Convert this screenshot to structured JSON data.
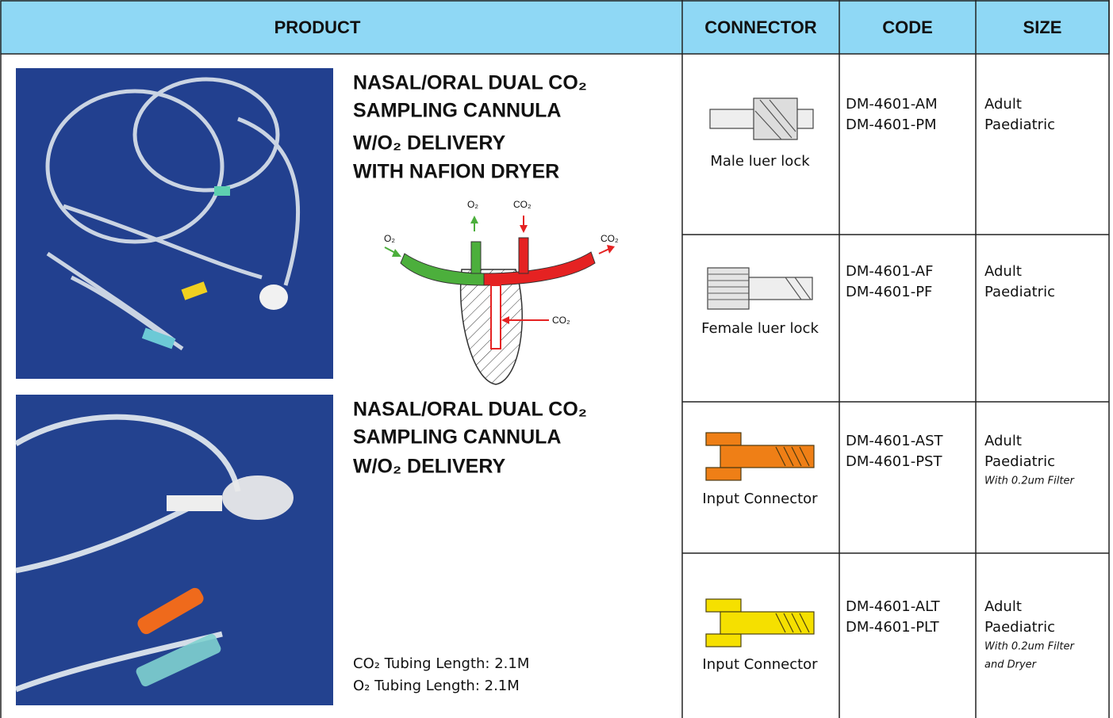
{
  "header": [
    "PRODUCT",
    "CONNECTOR",
    "CODE",
    "SIZE"
  ],
  "products": [
    {
      "title_lines": [
        "NASAL/ORAL DUAL CO₂",
        "SAMPLING CANNULA",
        "W/O₂ DELIVERY",
        "WITH NAFION DRYER"
      ],
      "diagram_labels": [
        "O₂",
        "CO₂",
        "O₂",
        "CO₂",
        "CO₂"
      ]
    },
    {
      "title_lines": [
        "NASAL/ORAL DUAL CO₂",
        "SAMPLING CANNULA",
        "W/O₂ DELIVERY"
      ],
      "notes": [
        "CO₂ Tubing Length: 2.1M",
        "O₂ Tubing Length: 2.1M"
      ]
    }
  ],
  "rows": [
    {
      "connector": "Male luer lock",
      "codes": [
        "DM-4601-AM",
        "DM-4601-PM"
      ],
      "sizes": [
        "Adult",
        "Paediatric"
      ]
    },
    {
      "connector": "Female luer lock",
      "codes": [
        "DM-4601-AF",
        "DM-4601-PF"
      ],
      "sizes": [
        "Adult",
        "Paediatric"
      ]
    },
    {
      "connector": "Input Connector",
      "codes": [
        "DM-4601-AST",
        "DM-4601-PST"
      ],
      "sizes": [
        "Adult",
        "Paediatric"
      ],
      "note_lines": [
        "With 0.2um Filter"
      ]
    },
    {
      "connector": "Input Connector",
      "codes": [
        "DM-4601-ALT",
        "DM-4601-PLT"
      ],
      "sizes": [
        "Adult",
        "Paediatric"
      ],
      "note_lines": [
        "With 0.2um Filter",
        "and Dryer"
      ]
    }
  ]
}
